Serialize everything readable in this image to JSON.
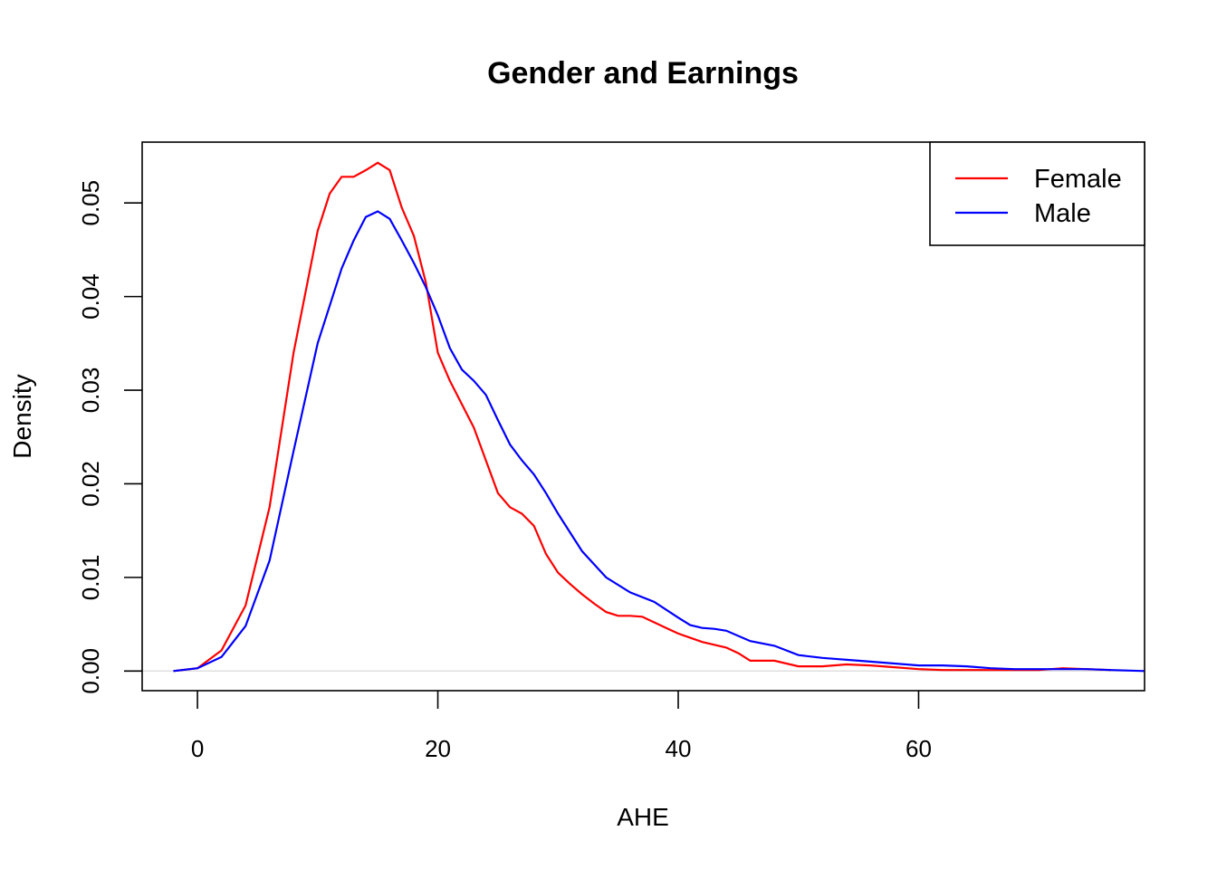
{
  "chart_data": {
    "type": "line",
    "title": "Gender and Earnings",
    "xlabel": "AHE",
    "ylabel": "Density",
    "xlim": [
      -4.6,
      78.8
    ],
    "ylim": [
      -0.0021,
      0.0565
    ],
    "xticks": [
      0,
      20,
      40,
      60
    ],
    "xtick_labels": [
      "0",
      "20",
      "40",
      "60"
    ],
    "yticks": [
      0.0,
      0.01,
      0.02,
      0.03,
      0.04,
      0.05
    ],
    "ytick_labels": [
      "0.00",
      "0.01",
      "0.02",
      "0.03",
      "0.04",
      "0.05"
    ],
    "baseline": 0,
    "baseline_color": "#d9d9d9",
    "legend": {
      "position": "top-right",
      "entries": [
        {
          "label": "Female",
          "color": "#ff0000"
        },
        {
          "label": "Male",
          "color": "#0000ff"
        }
      ]
    },
    "series": [
      {
        "name": "Female",
        "color": "#ff0000",
        "x": [
          -2,
          0,
          2,
          4,
          6,
          8,
          10,
          11,
          12,
          13,
          14,
          15,
          16,
          17,
          18,
          19,
          20,
          21,
          22,
          23,
          24,
          25,
          26,
          27,
          28,
          29,
          30,
          31,
          32,
          33,
          34,
          35,
          36,
          37,
          38,
          39,
          40,
          42,
          43,
          44,
          45,
          46,
          48,
          50,
          52,
          54,
          56,
          58,
          60,
          62,
          64,
          66,
          68,
          70,
          72,
          74,
          76
        ],
        "y": [
          0,
          0.0003,
          0.0022,
          0.007,
          0.0175,
          0.034,
          0.047,
          0.051,
          0.0528,
          0.0528,
          0.0535,
          0.0543,
          0.0535,
          0.0495,
          0.0465,
          0.0415,
          0.034,
          0.031,
          0.0285,
          0.026,
          0.0225,
          0.019,
          0.0175,
          0.0168,
          0.0155,
          0.0125,
          0.0105,
          0.0093,
          0.0082,
          0.0072,
          0.0063,
          0.0059,
          0.0059,
          0.0058,
          0.0052,
          0.0046,
          0.004,
          0.0031,
          0.0028,
          0.0025,
          0.0019,
          0.0011,
          0.0011,
          0.0005,
          0.0005,
          0.0007,
          0.0006,
          0.0004,
          0.0002,
          0.0001,
          0.0001,
          0.0001,
          0.0001,
          0.0001,
          0.0003,
          0.0002,
          0.0001
        ]
      },
      {
        "name": "Male",
        "color": "#0000ff",
        "x": [
          -2,
          0,
          2,
          4,
          6,
          8,
          10,
          12,
          13,
          14,
          15,
          16,
          17,
          18,
          19,
          20,
          21,
          22,
          23,
          24,
          25,
          26,
          27,
          28,
          29,
          30,
          32,
          34,
          36,
          38,
          40,
          41,
          42,
          43,
          44,
          46,
          48,
          50,
          52,
          55,
          58,
          60,
          62,
          64,
          66,
          68,
          70,
          72,
          74,
          76,
          78.8
        ],
        "y": [
          0,
          0.0003,
          0.0015,
          0.0048,
          0.0118,
          0.0235,
          0.035,
          0.043,
          0.046,
          0.0485,
          0.0491,
          0.0483,
          0.046,
          0.0436,
          0.041,
          0.038,
          0.0345,
          0.0322,
          0.031,
          0.0295,
          0.0268,
          0.0242,
          0.0225,
          0.021,
          0.019,
          0.0168,
          0.0128,
          0.01,
          0.0084,
          0.0074,
          0.0057,
          0.0049,
          0.0046,
          0.0045,
          0.0043,
          0.0032,
          0.0027,
          0.0017,
          0.0014,
          0.0011,
          0.0008,
          0.0006,
          0.0006,
          0.0005,
          0.0003,
          0.0002,
          0.0002,
          0.0002,
          0.0002,
          0.0001,
          0.0
        ]
      }
    ]
  }
}
